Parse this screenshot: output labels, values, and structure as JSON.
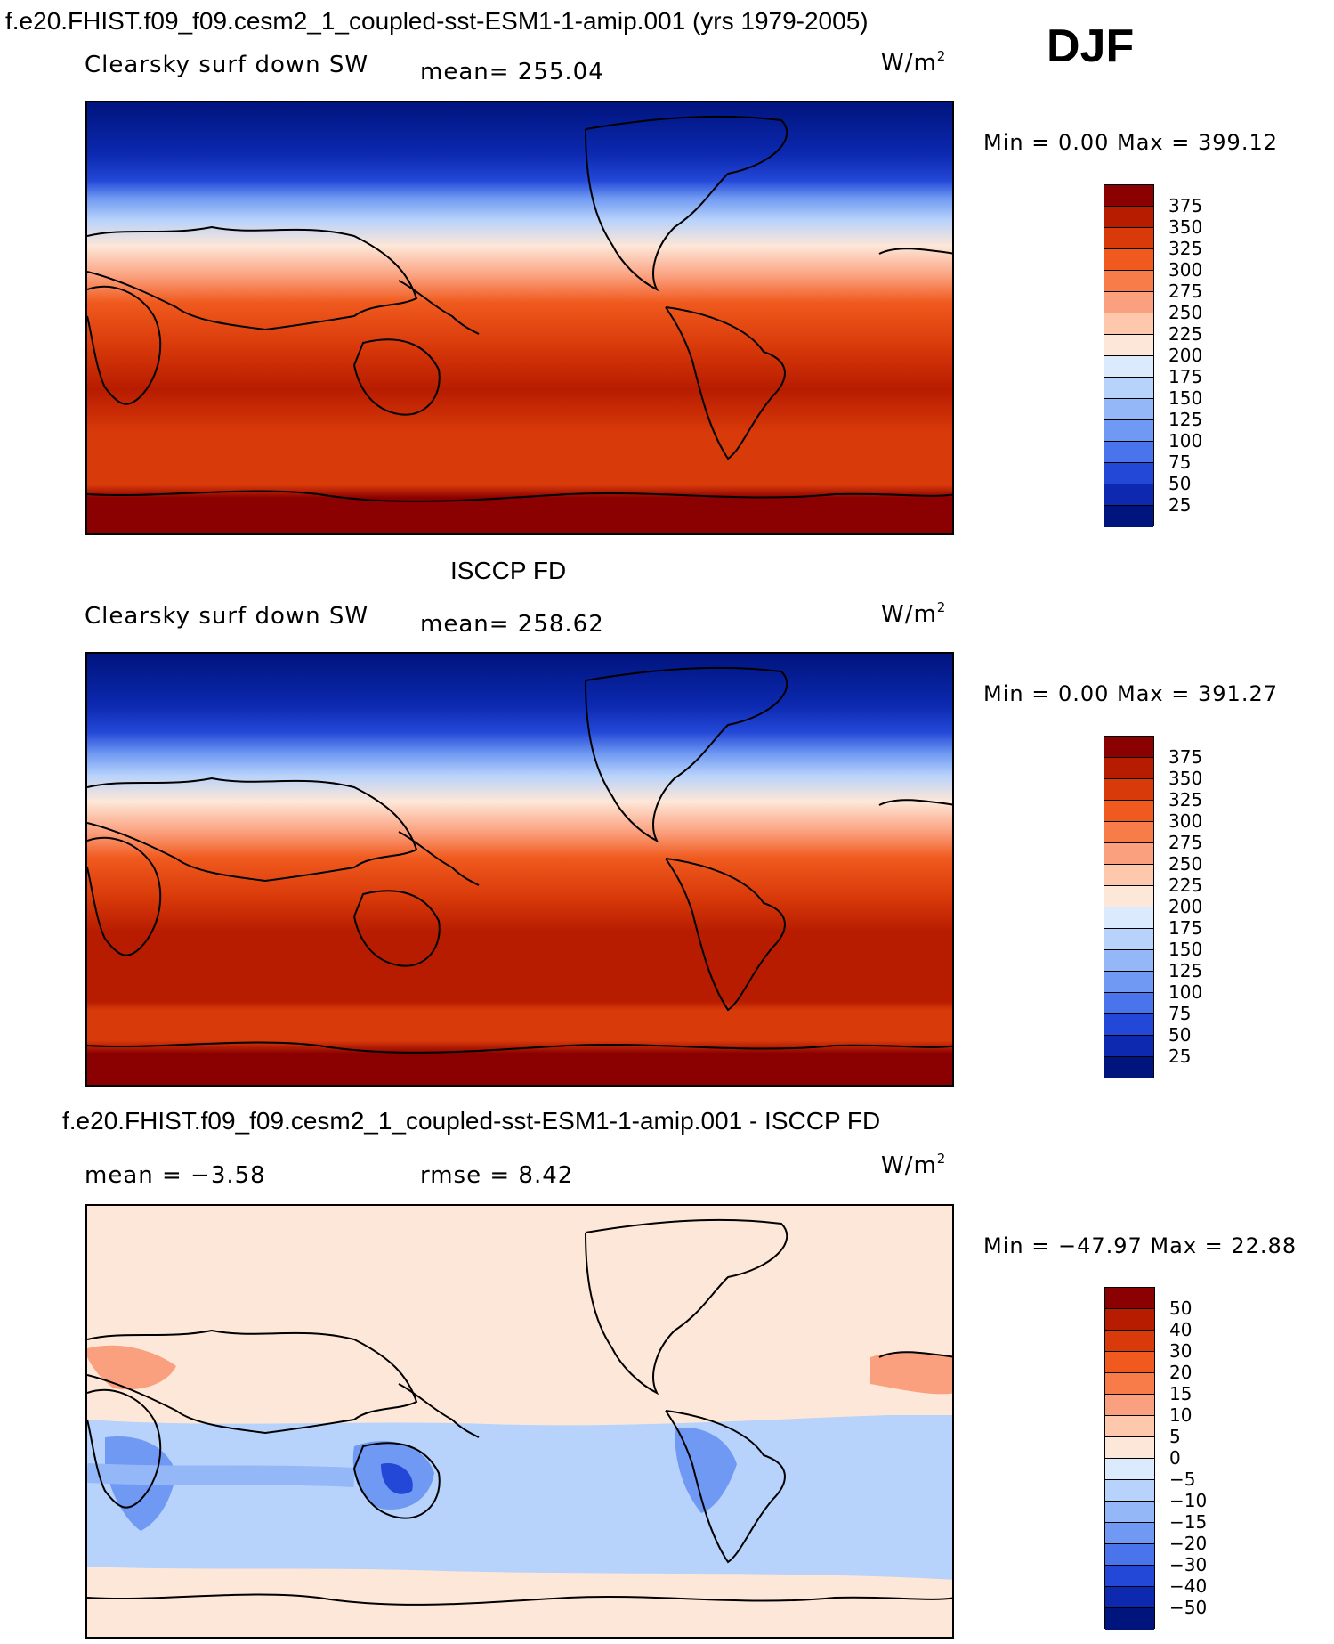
{
  "title": "f.e20.FHIST.f09_f09.cesm2_1_coupled-sst-ESM1-1-amip.001 (yrs 1979-2005)",
  "season": "DJF",
  "panel2_title": "ISCCP FD",
  "panel3_title": "f.e20.FHIST.f09_f09.cesm2_1_coupled-sst-ESM1-1-amip.001 - ISCCP FD",
  "units_base": "W/m",
  "units_exp": "2",
  "panels": [
    {
      "variable": "Clearsky surf down SW",
      "mean_text": "mean= 255.04",
      "minmax": "Min =    0.00 Max = 399.12"
    },
    {
      "variable": "Clearsky surf down SW",
      "mean_text": "mean= 258.62",
      "minmax": "Min =    0.00 Max = 391.27"
    },
    {
      "mean_text": "mean =   −3.58",
      "rmse_text": "rmse =    8.42",
      "minmax": "Min = −47.97 Max =   22.88"
    }
  ],
  "colorbar_abs": {
    "labels": [
      "375",
      "350",
      "325",
      "300",
      "275",
      "250",
      "225",
      "200",
      "175",
      "150",
      "125",
      "100",
      "75",
      "50",
      "25"
    ],
    "colors": [
      "#8b0000",
      "#b71c00",
      "#d93a0a",
      "#f05a1e",
      "#f77c4a",
      "#fba07e",
      "#fdc8ac",
      "#fde7d8",
      "#dbeafc",
      "#b7d2fb",
      "#93b7f7",
      "#6f99f2",
      "#4a74ec",
      "#2348d7",
      "#0c29b0",
      "#00147e"
    ]
  },
  "colorbar_diff": {
    "labels": [
      "50",
      "40",
      "30",
      "20",
      "15",
      "10",
      "5",
      "0",
      "−5",
      "−10",
      "−15",
      "−20",
      "−30",
      "−40",
      "−50"
    ],
    "colors": [
      "#8b0000",
      "#b71c00",
      "#d93a0a",
      "#f05a1e",
      "#f77c4a",
      "#fba07e",
      "#fdc8ac",
      "#fde7d8",
      "#dbeafc",
      "#b7d2fb",
      "#93b7f7",
      "#6f99f2",
      "#4a74ec",
      "#2348d7",
      "#0c29b0",
      "#00147e"
    ]
  },
  "chart_data": [
    {
      "type": "heatmap",
      "title": "Clearsky surf down SW",
      "units": "W/m2",
      "mean": 255.04,
      "min": 0.0,
      "max": 399.12,
      "levels": [
        25,
        50,
        75,
        100,
        125,
        150,
        175,
        200,
        225,
        250,
        275,
        300,
        325,
        350,
        375
      ],
      "zonal_profile_lat_deg": [
        90,
        80,
        70,
        60,
        50,
        40,
        30,
        20,
        10,
        0,
        -10,
        -20,
        -30,
        -40,
        -50,
        -60,
        -70,
        -80,
        -90
      ],
      "zonal_profile_values": [
        0,
        20,
        45,
        85,
        150,
        205,
        245,
        285,
        310,
        330,
        345,
        350,
        355,
        355,
        350,
        340,
        330,
        385,
        395
      ]
    },
    {
      "type": "heatmap",
      "title": "ISCCP FD",
      "units": "W/m2",
      "mean": 258.62,
      "min": 0.0,
      "max": 391.27,
      "levels": [
        25,
        50,
        75,
        100,
        125,
        150,
        175,
        200,
        225,
        250,
        275,
        300,
        325,
        350,
        375
      ],
      "zonal_profile_lat_deg": [
        90,
        80,
        70,
        60,
        50,
        40,
        30,
        20,
        10,
        0,
        -10,
        -20,
        -30,
        -40,
        -50,
        -60,
        -70,
        -80,
        -90
      ],
      "zonal_profile_values": [
        0,
        15,
        40,
        90,
        155,
        210,
        250,
        288,
        315,
        335,
        348,
        355,
        360,
        360,
        352,
        342,
        338,
        380,
        390
      ]
    },
    {
      "type": "heatmap",
      "title": "f.e20.FHIST.f09_f09.cesm2_1_coupled-sst-ESM1-1-amip.001 - ISCCP FD",
      "units": "W/m2",
      "mean": -3.58,
      "rmse": 8.42,
      "min": -47.97,
      "max": 22.88,
      "levels": [
        -50,
        -40,
        -30,
        -20,
        -15,
        -10,
        -5,
        0,
        5,
        10,
        15,
        20,
        30,
        40,
        50
      ]
    }
  ]
}
